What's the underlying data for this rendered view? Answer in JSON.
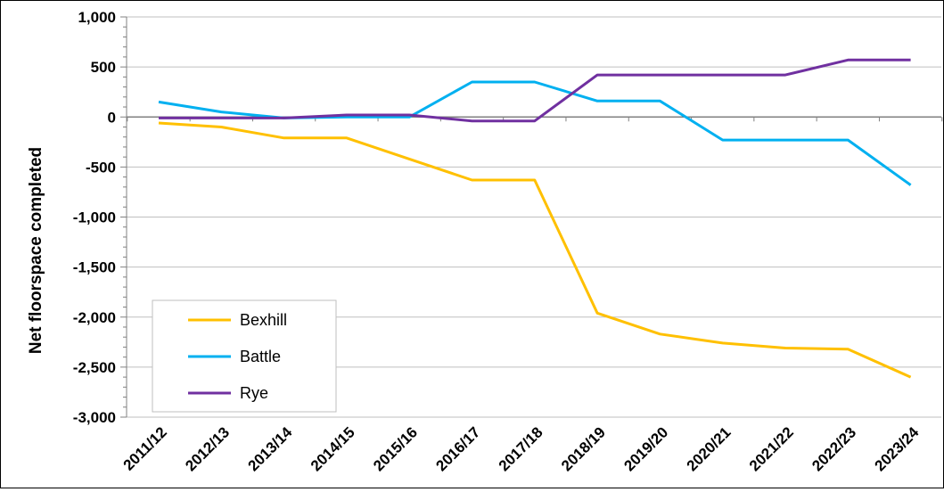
{
  "chart_data": {
    "type": "line",
    "title": "",
    "xlabel": "",
    "ylabel": "Net floorspace completed",
    "ylim": [
      -3000,
      1000
    ],
    "yticks": [
      1000,
      500,
      0,
      -500,
      -1000,
      -1500,
      -2000,
      -2500,
      -3000
    ],
    "ytick_labels": [
      "1,000",
      "500",
      "0",
      "-500",
      "-1,000",
      "-1,500",
      "-2,000",
      "-2,500",
      "-3,000"
    ],
    "grid": true,
    "legend_position": "bottom-left",
    "categories": [
      "2011/12",
      "2012/13",
      "2013/14",
      "2014/15",
      "2015/16",
      "2016/17",
      "2017/18",
      "2018/19",
      "2019/20",
      "2020/21",
      "2021/22",
      "2022/23",
      "2023/24"
    ],
    "series": [
      {
        "name": "Bexhill",
        "color": "#FFC000",
        "values": [
          -60,
          -100,
          -210,
          -210,
          -420,
          -630,
          -630,
          -1960,
          -2170,
          -2260,
          -2310,
          -2320,
          -2600
        ]
      },
      {
        "name": "Battle",
        "color": "#00B0F0",
        "values": [
          150,
          50,
          -10,
          0,
          0,
          350,
          350,
          160,
          160,
          -230,
          -230,
          -230,
          -680
        ]
      },
      {
        "name": "Rye",
        "color": "#7030A0",
        "values": [
          -10,
          -10,
          -10,
          20,
          20,
          -40,
          -40,
          420,
          420,
          420,
          420,
          570,
          570
        ]
      }
    ]
  }
}
